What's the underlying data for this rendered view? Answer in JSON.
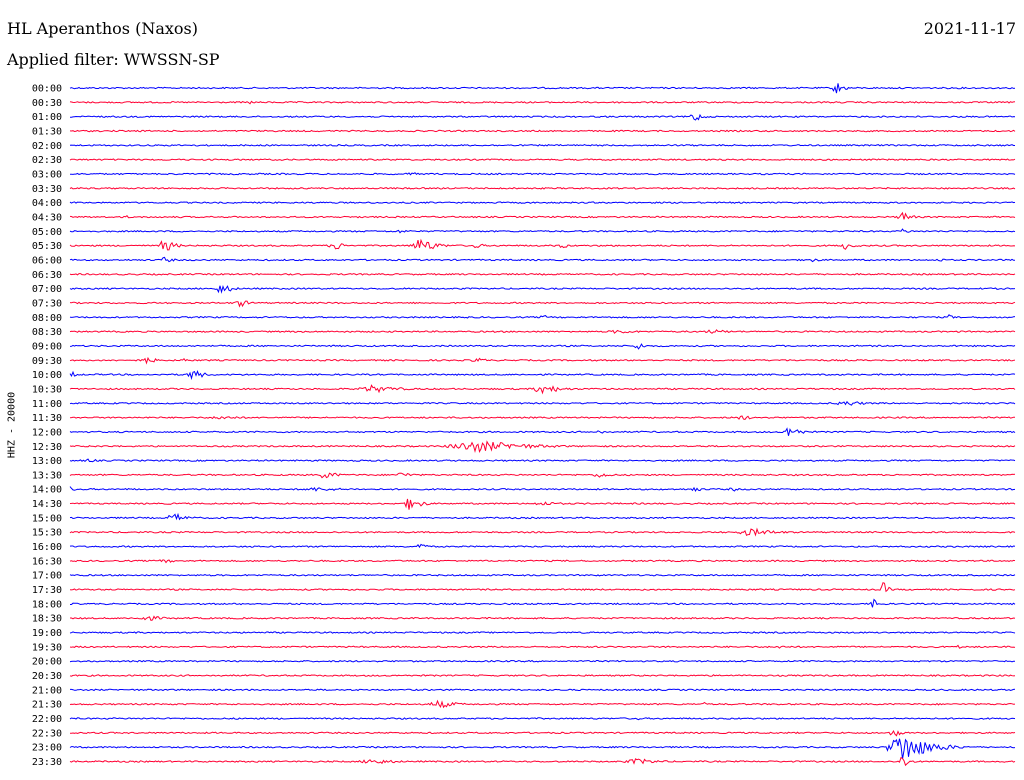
{
  "header": {
    "station": "HL Aperanthos (Naxos)",
    "date": "2021-11-17",
    "filter": "Applied filter: WWSSN-SP"
  },
  "chart_data": {
    "type": "line",
    "title": "HL Aperanthos (Naxos)",
    "ylabel": "HHZ - 20000",
    "xlabel": "",
    "colors": [
      "#0000ff",
      "#ff0033"
    ],
    "traces": [
      {
        "label": "00:00",
        "events": [
          {
            "t": 0.81,
            "a": 7,
            "w": 0.006
          }
        ]
      },
      {
        "label": "00:30",
        "events": [
          {
            "t": 0.19,
            "a": 3,
            "w": 0.002
          }
        ]
      },
      {
        "label": "01:00",
        "events": [
          {
            "t": 0.66,
            "a": 6,
            "w": 0.006
          }
        ]
      },
      {
        "label": "01:30",
        "events": []
      },
      {
        "label": "02:00",
        "events": []
      },
      {
        "label": "02:30",
        "events": []
      },
      {
        "label": "03:00",
        "events": [
          {
            "t": 0.36,
            "a": 2,
            "w": 0.008
          }
        ]
      },
      {
        "label": "03:30",
        "events": []
      },
      {
        "label": "04:00",
        "events": []
      },
      {
        "label": "04:30",
        "events": [
          {
            "t": 0.88,
            "a": 7,
            "w": 0.006
          },
          {
            "t": 0.06,
            "a": 2,
            "w": 0.002
          }
        ]
      },
      {
        "label": "05:00",
        "events": [
          {
            "t": 0.35,
            "a": 2,
            "w": 0.01
          },
          {
            "t": 0.88,
            "a": 3,
            "w": 0.006
          }
        ]
      },
      {
        "label": "05:30",
        "events": [
          {
            "t": 0.1,
            "a": 7,
            "w": 0.008
          },
          {
            "t": 0.28,
            "a": 5,
            "w": 0.008
          },
          {
            "t": 0.37,
            "a": 8,
            "w": 0.012
          },
          {
            "t": 0.43,
            "a": 3,
            "w": 0.006
          },
          {
            "t": 0.52,
            "a": 3,
            "w": 0.006
          },
          {
            "t": 0.82,
            "a": 4,
            "w": 0.008
          }
        ]
      },
      {
        "label": "06:00",
        "events": [
          {
            "t": 0.1,
            "a": 3,
            "w": 0.008
          },
          {
            "t": 0.78,
            "a": 3,
            "w": 0.008
          },
          {
            "t": 0.92,
            "a": 2,
            "w": 0.004
          }
        ]
      },
      {
        "label": "06:30",
        "events": []
      },
      {
        "label": "07:00",
        "events": [
          {
            "t": 0.16,
            "a": 6,
            "w": 0.008
          }
        ]
      },
      {
        "label": "07:30",
        "events": [
          {
            "t": 0.18,
            "a": 4,
            "w": 0.008
          }
        ]
      },
      {
        "label": "08:00",
        "events": [
          {
            "t": 0.5,
            "a": 3,
            "w": 0.004
          },
          {
            "t": 0.93,
            "a": 5,
            "w": 0.002
          }
        ]
      },
      {
        "label": "08:30",
        "events": [
          {
            "t": 0.58,
            "a": 2,
            "w": 0.02
          },
          {
            "t": 0.68,
            "a": 2,
            "w": 0.02
          }
        ]
      },
      {
        "label": "09:00",
        "events": [
          {
            "t": 0.6,
            "a": 6,
            "w": 0.004
          }
        ]
      },
      {
        "label": "09:30",
        "events": [
          {
            "t": 0.08,
            "a": 4,
            "w": 0.008
          },
          {
            "t": 0.12,
            "a": 3,
            "w": 0.003
          },
          {
            "t": 0.43,
            "a": 3,
            "w": 0.008
          }
        ]
      },
      {
        "label": "10:00",
        "events": [
          {
            "t": 0.0,
            "a": 5,
            "w": 0.004
          },
          {
            "t": 0.13,
            "a": 6,
            "w": 0.008
          }
        ]
      },
      {
        "label": "10:30",
        "events": [
          {
            "t": 0.32,
            "a": 4,
            "w": 0.02
          },
          {
            "t": 0.5,
            "a": 5,
            "w": 0.015
          }
        ]
      },
      {
        "label": "11:00",
        "events": [
          {
            "t": 0.82,
            "a": 3,
            "w": 0.015
          }
        ]
      },
      {
        "label": "11:30",
        "events": [
          {
            "t": 0.16,
            "a": 2,
            "w": 0.02
          },
          {
            "t": 0.71,
            "a": 3,
            "w": 0.008
          }
        ]
      },
      {
        "label": "12:00",
        "events": [
          {
            "t": 0.56,
            "a": 3,
            "w": 0.004
          },
          {
            "t": 0.76,
            "a": 7,
            "w": 0.008
          }
        ]
      },
      {
        "label": "12:30",
        "events": [
          {
            "t": 0.43,
            "a": 6,
            "w": 0.04
          }
        ]
      },
      {
        "label": "13:00",
        "events": [
          {
            "t": 0.02,
            "a": 2,
            "w": 0.008
          }
        ]
      },
      {
        "label": "13:30",
        "events": [
          {
            "t": 0.27,
            "a": 5,
            "w": 0.008
          },
          {
            "t": 0.35,
            "a": 3,
            "w": 0.01
          },
          {
            "t": 0.56,
            "a": 3,
            "w": 0.01
          }
        ]
      },
      {
        "label": "14:00",
        "events": [
          {
            "t": 0.0,
            "a": 3,
            "w": 0.004
          },
          {
            "t": 0.26,
            "a": 2,
            "w": 0.03
          },
          {
            "t": 0.66,
            "a": 3,
            "w": 0.006
          },
          {
            "t": 0.7,
            "a": 3,
            "w": 0.004
          }
        ]
      },
      {
        "label": "14:30",
        "events": [
          {
            "t": 0.36,
            "a": 8,
            "w": 0.008
          },
          {
            "t": 0.5,
            "a": 2,
            "w": 0.02
          }
        ]
      },
      {
        "label": "15:00",
        "events": [
          {
            "t": 0.11,
            "a": 5,
            "w": 0.01
          }
        ]
      },
      {
        "label": "15:30",
        "events": [
          {
            "t": 0.72,
            "a": 4,
            "w": 0.02
          }
        ]
      },
      {
        "label": "16:00",
        "events": [
          {
            "t": 0.37,
            "a": 4,
            "w": 0.006
          }
        ]
      },
      {
        "label": "16:30",
        "events": [
          {
            "t": 0.1,
            "a": 2,
            "w": 0.01
          }
        ]
      },
      {
        "label": "17:00",
        "events": []
      },
      {
        "label": "17:30",
        "events": [
          {
            "t": 0.86,
            "a": 10,
            "w": 0.003
          }
        ]
      },
      {
        "label": "18:00",
        "events": [
          {
            "t": 0.85,
            "a": 5,
            "w": 0.006
          }
        ]
      },
      {
        "label": "18:30",
        "events": [
          {
            "t": 0.08,
            "a": 3,
            "w": 0.015
          }
        ]
      },
      {
        "label": "19:00",
        "events": []
      },
      {
        "label": "19:30",
        "events": [
          {
            "t": 0.75,
            "a": 2,
            "w": 0.006
          },
          {
            "t": 0.94,
            "a": 2,
            "w": 0.006
          }
        ]
      },
      {
        "label": "20:00",
        "events": []
      },
      {
        "label": "20:30",
        "events": []
      },
      {
        "label": "21:00",
        "events": []
      },
      {
        "label": "21:30",
        "events": [
          {
            "t": 0.39,
            "a": 4,
            "w": 0.015
          },
          {
            "t": 0.67,
            "a": 2,
            "w": 0.004
          }
        ]
      },
      {
        "label": "22:00",
        "events": [
          {
            "t": 0.6,
            "a": 2,
            "w": 0.002
          }
        ]
      },
      {
        "label": "22:30",
        "events": [
          {
            "t": 0.87,
            "a": 8,
            "w": 0.004
          }
        ]
      },
      {
        "label": "23:00",
        "events": [
          {
            "t": 0.88,
            "a": 16,
            "w": 0.02
          }
        ]
      },
      {
        "label": "23:30",
        "events": [
          {
            "t": 0.32,
            "a": 3,
            "w": 0.02
          },
          {
            "t": 0.6,
            "a": 3,
            "w": 0.02
          },
          {
            "t": 0.88,
            "a": 10,
            "w": 0.004
          }
        ]
      }
    ]
  }
}
